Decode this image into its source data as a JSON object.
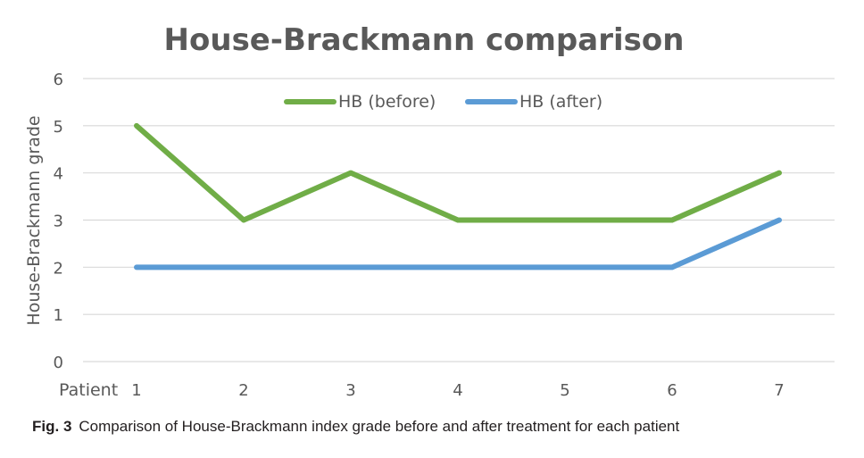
{
  "chart_data": {
    "type": "line",
    "title": "House-Brackmann comparison",
    "xlabel": "Patient",
    "ylabel": "House-Brackmann grade",
    "categories": [
      "1",
      "2",
      "3",
      "4",
      "5",
      "6",
      "7"
    ],
    "series": [
      {
        "name": "HB (before)",
        "values": [
          5,
          3,
          4,
          3,
          3,
          3,
          4
        ],
        "color": "#70ad47"
      },
      {
        "name": "HB (after)",
        "values": [
          2,
          2,
          2,
          2,
          2,
          2,
          3
        ],
        "color": "#5b9bd5"
      }
    ],
    "ylim": [
      0,
      6
    ],
    "yticks": [
      0,
      1,
      2,
      3,
      4,
      5,
      6
    ],
    "grid": true,
    "legend_position": "top-center",
    "gridline_color": "#d9d9d9"
  },
  "caption": {
    "label": "Fig. 3",
    "text": "Comparison of House-Brackmann index grade before and after treatment for each patient"
  }
}
